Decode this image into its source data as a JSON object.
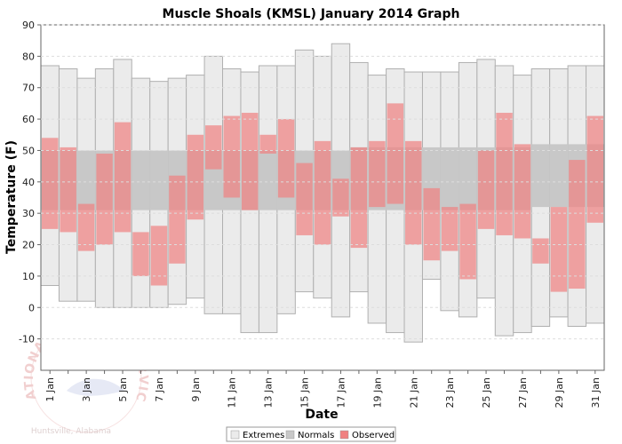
{
  "chart_data": {
    "type": "bar",
    "title": "Muscle Shoals (KMSL) January 2014 Graph",
    "xlabel": "Date",
    "ylabel": "Temperature (F)",
    "ylim": [
      -20,
      90
    ],
    "yticks": [
      -10,
      0,
      10,
      20,
      30,
      40,
      50,
      60,
      70,
      80,
      90
    ],
    "xtick_labels": [
      "1 Jan",
      "3 Jan",
      "5 Jan",
      "7 Jan",
      "9 Jan",
      "11 Jan",
      "13 Jan",
      "15 Jan",
      "17 Jan",
      "19 Jan",
      "21 Jan",
      "23 Jan",
      "25 Jan",
      "27 Jan",
      "29 Jan",
      "31 Jan"
    ],
    "days": [
      1,
      2,
      3,
      4,
      5,
      6,
      7,
      8,
      9,
      10,
      11,
      12,
      13,
      14,
      15,
      16,
      17,
      18,
      19,
      20,
      21,
      22,
      23,
      24,
      25,
      26,
      27,
      28,
      29,
      30,
      31
    ],
    "grid": true,
    "legend_placement": "bottom-center",
    "legend": [
      "Extremes",
      "Normals",
      "Observed"
    ],
    "colors": {
      "extremes_fill": "#ebebeb",
      "extremes_stroke": "#b0b0b0",
      "normals_fill": "#c8c8c8",
      "observed_fill": "#f08080",
      "plot_background": "#ffffff",
      "axis": "#666666",
      "grid": "#dddddd"
    },
    "series": [
      {
        "name": "Extremes",
        "low": [
          7,
          2,
          2,
          0,
          0,
          0,
          0,
          1,
          3,
          -2,
          -2,
          -8,
          -8,
          -2,
          5,
          3,
          -3,
          5,
          -5,
          -8,
          -11,
          9,
          -1,
          -3,
          3,
          -9,
          -8,
          -6,
          -3,
          -6,
          -5
        ],
        "high": [
          77,
          76,
          73,
          76,
          79,
          73,
          72,
          73,
          74,
          80,
          76,
          75,
          77,
          77,
          82,
          80,
          84,
          78,
          74,
          76,
          75,
          75,
          75,
          78,
          79,
          77,
          74,
          76,
          76,
          77,
          77
        ]
      },
      {
        "name": "Normals",
        "low": [
          31,
          31,
          31,
          31,
          31,
          31,
          31,
          31,
          31,
          31,
          31,
          31,
          31,
          31,
          31,
          31,
          31,
          31,
          31,
          31,
          31,
          31,
          31,
          31,
          31,
          31,
          31,
          32,
          32,
          32,
          32
        ],
        "high": [
          50,
          50,
          50,
          50,
          50,
          50,
          50,
          50,
          50,
          50,
          50,
          50,
          50,
          50,
          50,
          50,
          50,
          51,
          51,
          51,
          51,
          51,
          51,
          51,
          51,
          51,
          51,
          52,
          52,
          52,
          52
        ]
      },
      {
        "name": "Observed",
        "low": [
          25,
          24,
          18,
          20,
          24,
          10,
          7,
          14,
          28,
          44,
          35,
          31,
          49,
          35,
          23,
          20,
          29,
          19,
          32,
          33,
          20,
          15,
          18,
          9,
          25,
          23,
          22,
          14,
          5,
          6,
          27
        ],
        "high": [
          54,
          51,
          33,
          49,
          59,
          24,
          26,
          42,
          55,
          58,
          61,
          62,
          55,
          60,
          46,
          53,
          41,
          51,
          53,
          65,
          53,
          38,
          32,
          33,
          50,
          62,
          52,
          22,
          32,
          47,
          61
        ]
      }
    ]
  },
  "watermark": {
    "arc_top": "NATIONAL WEATHER SERVICE",
    "city": "Huntsville, Alabama"
  }
}
